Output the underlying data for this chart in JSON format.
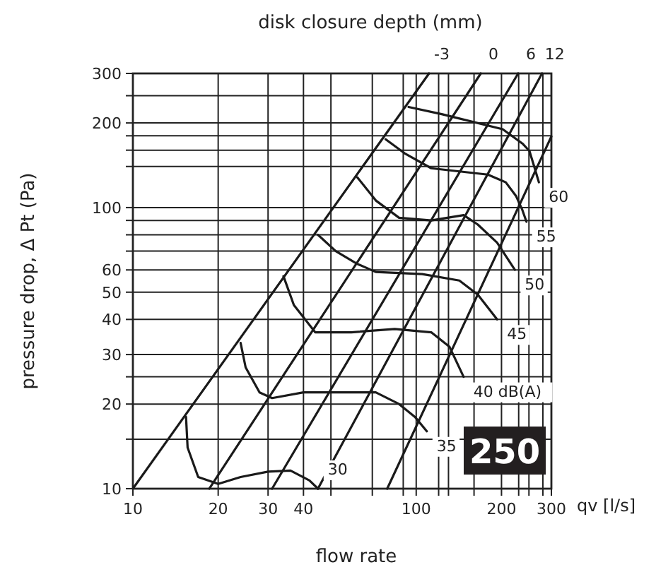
{
  "chart_data": {
    "type": "line",
    "legend_title": "disk closure depth (mm)",
    "xlabel": "flow rate",
    "ylabel": "pressure drop, Δ Pt (Pa)",
    "log": "xy",
    "grid": true,
    "xlim": [
      10,
      300
    ],
    "ylim": [
      10,
      300
    ],
    "xticks": [
      10,
      20,
      30,
      40,
      {
        "value": 50,
        "label": null
      },
      {
        "value": 70,
        "label": null
      },
      {
        "value": 90,
        "label": null
      },
      100,
      {
        "value": 120,
        "label": null
      },
      {
        "value": 130,
        "label": null
      },
      {
        "value": 160,
        "label": null
      },
      200,
      {
        "value": 230,
        "label": null
      },
      {
        "value": 250,
        "label": null
      },
      {
        "value": 280,
        "label": null
      },
      300
    ],
    "yticks": [
      10,
      {
        "value": 15,
        "label": null
      },
      20,
      {
        "value": 25,
        "label": null
      },
      30,
      40,
      50,
      60,
      {
        "value": 70,
        "label": null
      },
      {
        "value": 80,
        "label": null
      },
      {
        "value": 90,
        "label": null
      },
      100,
      {
        "value": 140,
        "label": null
      },
      {
        "value": 160,
        "label": null
      },
      {
        "value": 180,
        "label": null
      },
      200,
      {
        "value": 250,
        "label": null
      },
      300
    ],
    "annotations": [
      "qv [l/s]",
      "250"
    ],
    "series": [
      {
        "name": "-3",
        "color": "#1a1a1a",
        "x": [
          10,
          111
        ],
        "values": [
          10,
          300
        ]
      },
      {
        "name": "0",
        "color": "#1a1a1a",
        "x": [
          18.6,
          169
        ],
        "values": [
          10,
          300
        ]
      },
      {
        "name": "6",
        "color": "#1a1a1a",
        "x": [
          31,
          229
        ],
        "values": [
          10,
          300
        ]
      },
      {
        "name": "12",
        "color": "#1a1a1a",
        "x": [
          45,
          278
        ],
        "values": [
          10,
          300
        ]
      },
      {
        "color": "#1a1a1a",
        "x": [
          79,
          300
        ],
        "values": [
          10,
          179
        ]
      },
      {
        "name": "60",
        "color": "#1a1a1a",
        "x": [
          94,
          123,
          202,
          237,
          251,
          262,
          271
        ],
        "values": [
          228,
          215,
          190,
          169,
          159,
          138,
          123
        ]
      },
      {
        "name": "55",
        "color": "#1a1a1a",
        "x": [
          78,
          91,
          113,
          179,
          207,
          225,
          237,
          245
        ],
        "values": [
          175,
          156,
          138,
          131,
          123,
          110,
          98,
          89
        ]
      },
      {
        "name": "50",
        "color": "#1a1a1a",
        "x": [
          62,
          72,
          87,
          113,
          147,
          165,
          193,
          214,
          223
        ],
        "values": [
          128,
          106,
          92,
          90,
          94,
          87,
          75,
          64,
          60
        ]
      },
      {
        "name": "45",
        "color": "#1a1a1a",
        "x": [
          45,
          52,
          62,
          72,
          105,
          142,
          165,
          193
        ],
        "values": [
          80,
          70,
          63,
          59,
          58,
          55,
          49,
          40
        ]
      },
      {
        "name": "40 dB(A)",
        "color": "#1a1a1a",
        "x": [
          34,
          37,
          44,
          59,
          84,
          113,
          131,
          147
        ],
        "values": [
          57,
          45,
          36,
          36,
          37,
          36,
          32,
          25
        ]
      },
      {
        "name": "35",
        "color": "#1a1a1a",
        "x": [
          24,
          25,
          28,
          31,
          40,
          54,
          72,
          87,
          99,
          109
        ],
        "values": [
          33,
          27,
          22,
          21,
          22,
          22,
          22,
          20,
          18,
          16
        ]
      },
      {
        "name": "30",
        "color": "#1a1a1a",
        "x": [
          15.4,
          15.6,
          17,
          20,
          24,
          30,
          36,
          42,
          45
        ],
        "values": [
          18,
          14,
          11,
          10.4,
          11,
          11.5,
          11.6,
          10.7,
          10
        ]
      }
    ]
  }
}
